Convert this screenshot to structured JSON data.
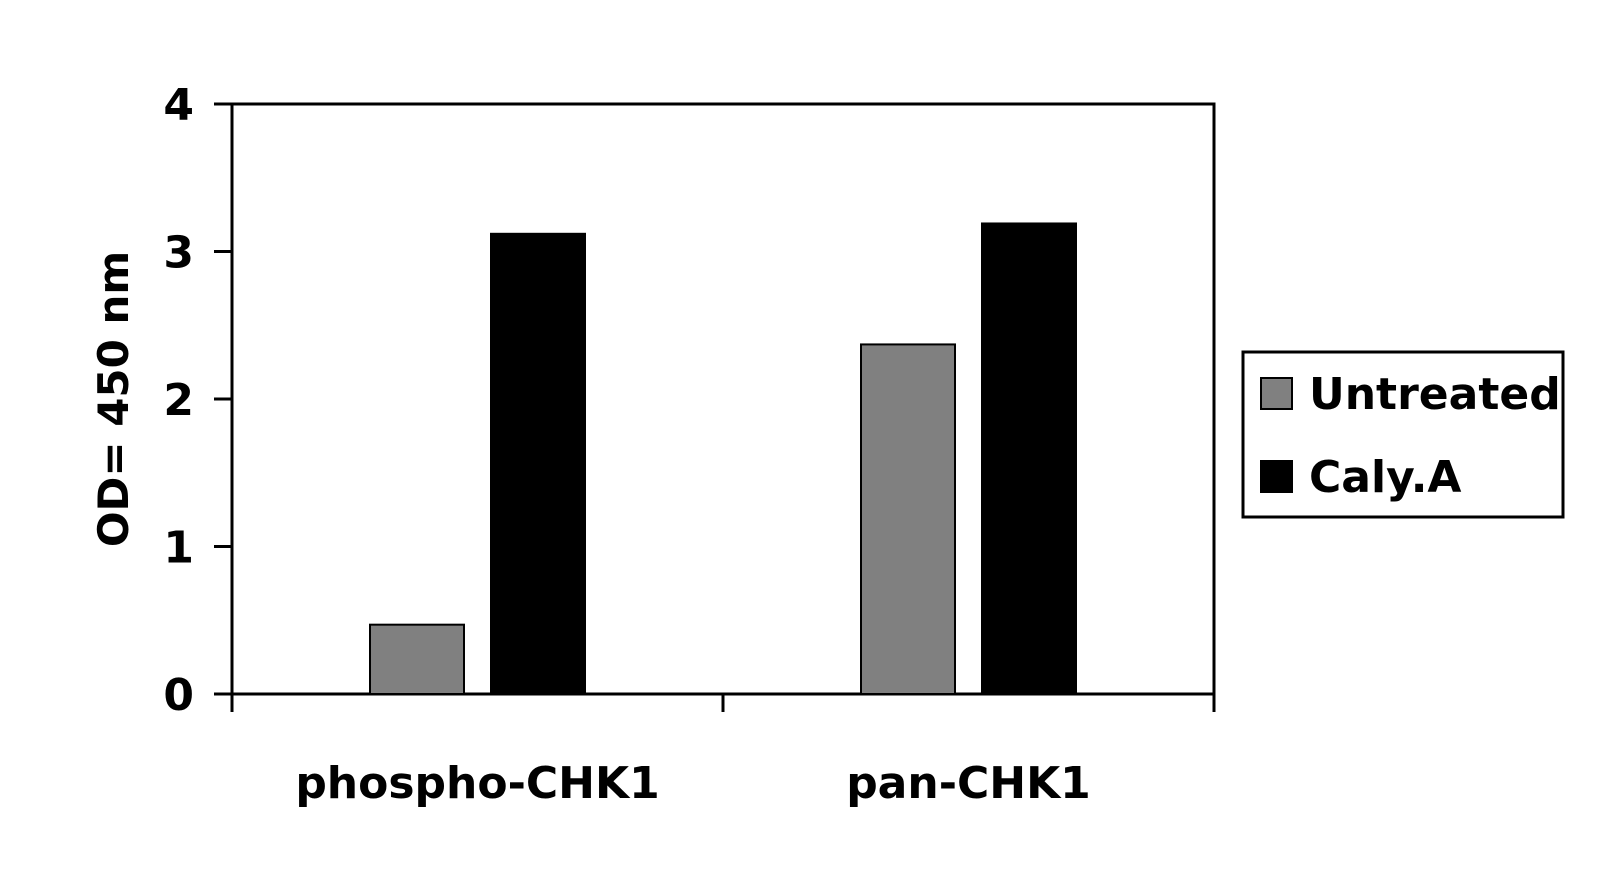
{
  "chart_data": {
    "type": "bar",
    "categories": [
      "phospho-CHK1",
      "pan-CHK1"
    ],
    "series": [
      {
        "name": "Untreated",
        "values": [
          0.47,
          2.37
        ],
        "color": "#808080"
      },
      {
        "name": "Caly.A",
        "values": [
          3.12,
          3.19
        ],
        "color": "#000000"
      }
    ],
    "xlabel": "",
    "ylabel": "OD= 450 nm",
    "ylim": [
      0,
      4
    ],
    "yticks": [
      0,
      1,
      2,
      3,
      4
    ],
    "legend_position": "right",
    "grid": false
  }
}
